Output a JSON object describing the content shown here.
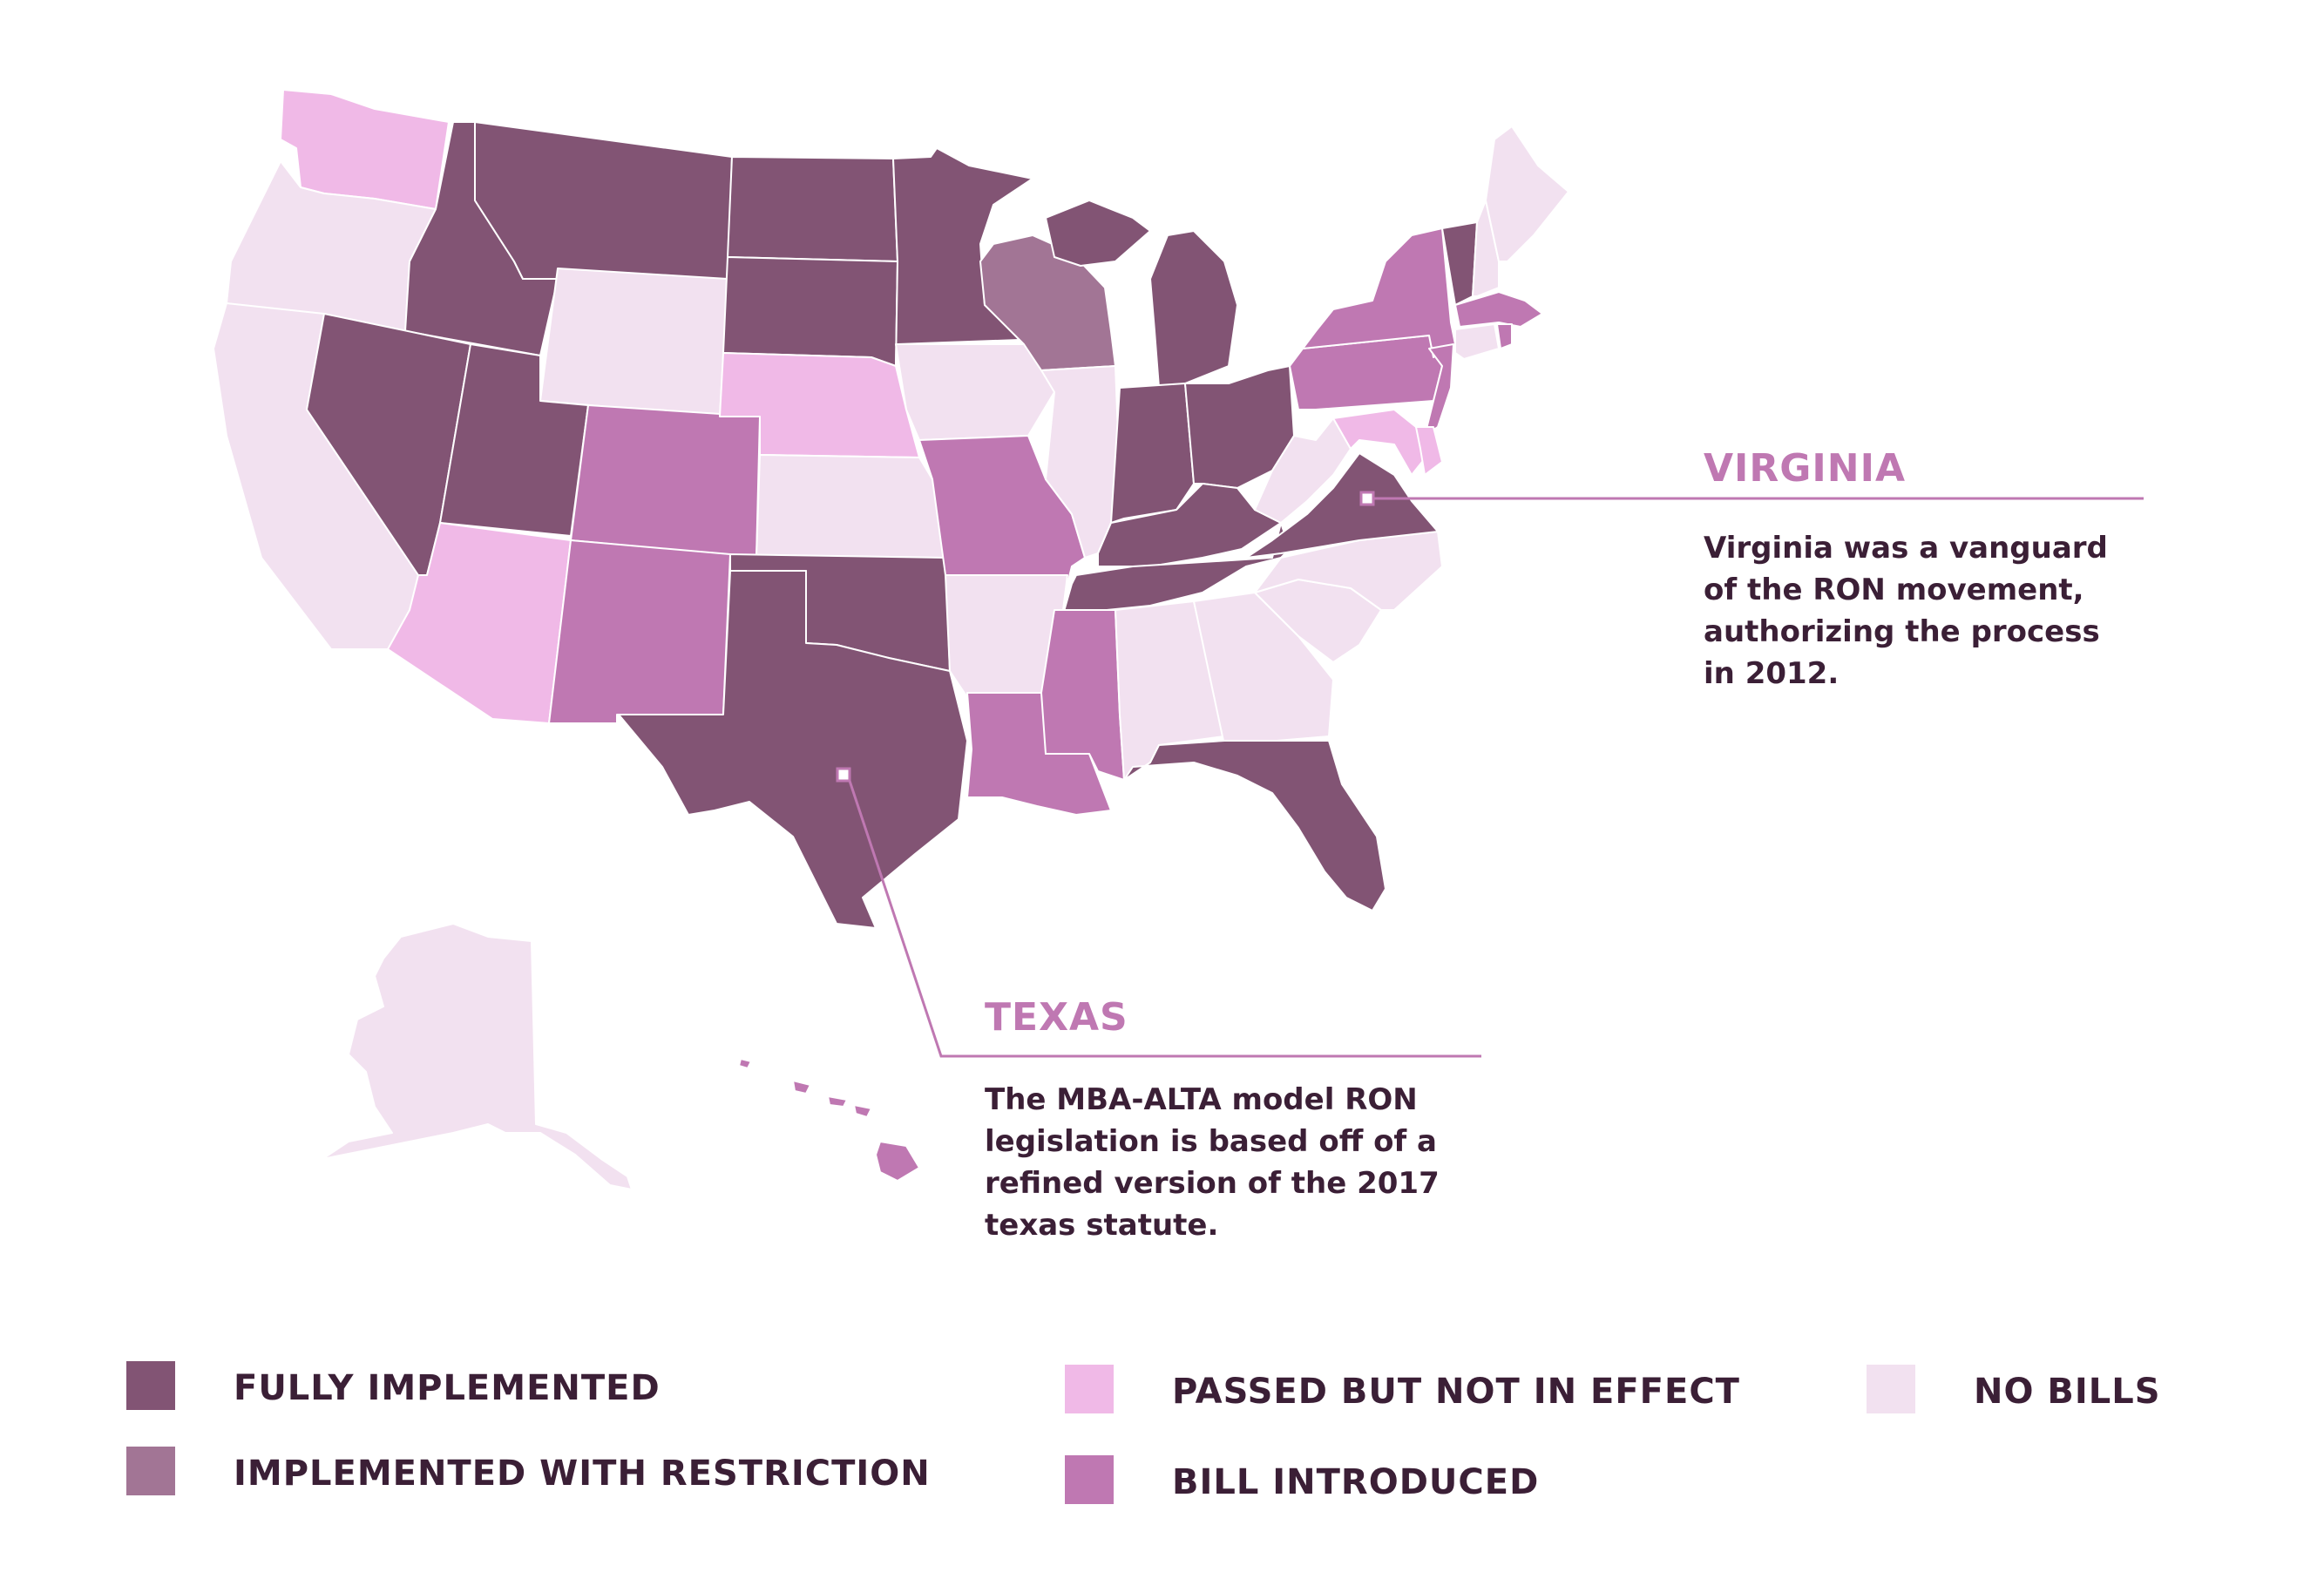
{
  "colors": {
    "fully_implemented": "#825474",
    "implemented_with_restriction": "#a27595",
    "passed_not_in_effect": "#f0b9e7",
    "bill_introduced": "#bf78b2",
    "no_bills": "#f2e1f0",
    "callout_accent": "#bf78b2",
    "text_dark": "#3b1f36",
    "state_border": "#ffffff"
  },
  "legend": {
    "items": [
      {
        "key": "fully_implemented",
        "label": "FULLY IMPLEMENTED"
      },
      {
        "key": "implemented_with_restriction",
        "label": "IMPLEMENTED WITH RESTRICTION"
      },
      {
        "key": "passed_not_in_effect",
        "label": "PASSED BUT NOT IN EFFECT"
      },
      {
        "key": "bill_introduced",
        "label": "BILL INTRODUCED"
      },
      {
        "key": "no_bills",
        "label": "NO BILLS"
      }
    ]
  },
  "callouts": {
    "virginia": {
      "title": "VIRGINIA",
      "lines": [
        "Virginia was a vanguard",
        "of the RON movement,",
        "authorizing the process",
        "in 2012."
      ]
    },
    "texas": {
      "title": "TEXAS",
      "lines": [
        "The MBA-ALTA model RON",
        "legislation is based off of a",
        "refined version of the 2017",
        "texas statute."
      ]
    }
  },
  "states": {
    "WA": "passed_not_in_effect",
    "OR": "no_bills",
    "CA": "no_bills",
    "ID": "fully_implemented",
    "NV": "fully_implemented",
    "MT": "fully_implemented",
    "WY": "no_bills",
    "UT": "fully_implemented",
    "AZ": "passed_not_in_effect",
    "CO": "bill_introduced",
    "NM": "bill_introduced",
    "ND": "fully_implemented",
    "SD": "fully_implemented",
    "NE": "passed_not_in_effect",
    "KS": "no_bills",
    "OK": "fully_implemented",
    "TX": "fully_implemented",
    "MN": "fully_implemented",
    "IA": "no_bills",
    "MO": "bill_introduced",
    "AR": "no_bills",
    "LA": "bill_introduced",
    "WI": "implemented_with_restriction",
    "IL": "no_bills",
    "MI": "fully_implemented",
    "IN": "fully_implemented",
    "OH": "fully_implemented",
    "KY": "fully_implemented",
    "TN": "fully_implemented",
    "MS": "bill_introduced",
    "AL": "no_bills",
    "GA": "no_bills",
    "FL": "fully_implemented",
    "SC": "no_bills",
    "NC": "no_bills",
    "VA": "fully_implemented",
    "WV": "no_bills",
    "PA": "bill_introduced",
    "NY": "bill_introduced",
    "NJ": "bill_introduced",
    "MD": "passed_not_in_effect",
    "DE": "passed_not_in_effect",
    "VT": "fully_implemented",
    "NH": "no_bills",
    "ME": "no_bills",
    "MA": "bill_introduced",
    "CT": "no_bills",
    "RI": "bill_introduced",
    "AK": "no_bills",
    "HI": "bill_introduced"
  }
}
